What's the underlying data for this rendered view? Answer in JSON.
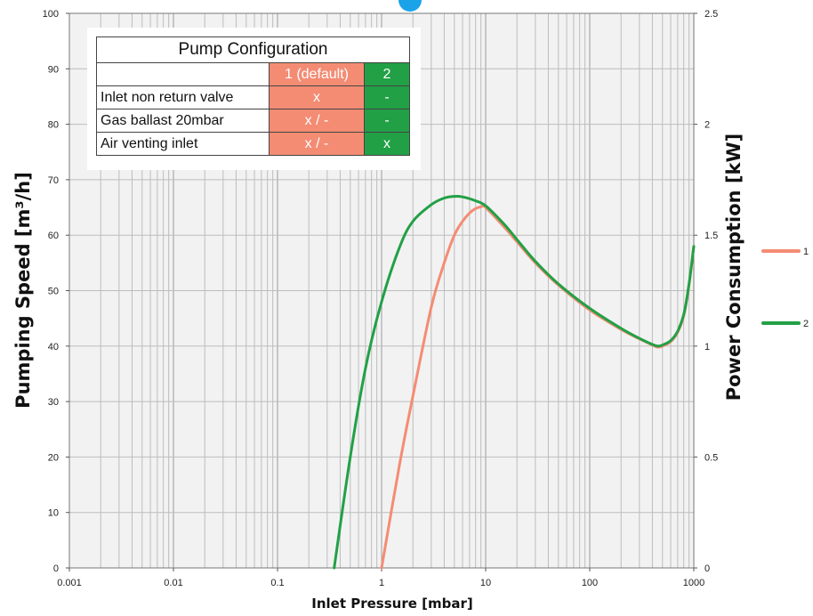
{
  "chart_data": {
    "type": "line",
    "title": "",
    "xlabel": "Inlet Pressure [mbar]",
    "ylabel": "Pumping Speed [m³/h]",
    "y2label": "Power Consumption [kW]",
    "x_scale": "log",
    "xlim": [
      0.001,
      1000
    ],
    "ylim": [
      0,
      100
    ],
    "y2lim": [
      0,
      2.5
    ],
    "x_ticks": [
      "0.001",
      "0.01",
      "0.1",
      "1",
      "10",
      "100",
      "1000"
    ],
    "y_ticks": [
      "0",
      "10",
      "20",
      "30",
      "40",
      "50",
      "60",
      "70",
      "80",
      "90",
      "100"
    ],
    "y2_ticks": [
      "0",
      "0.5",
      "1",
      "1.5",
      "2",
      "2.5"
    ],
    "grid": true,
    "legend_position": "right",
    "series": [
      {
        "name": "1",
        "color": "#f48c74",
        "x": [
          1,
          1.5,
          2,
          3,
          4,
          5,
          6,
          7,
          8,
          9,
          10,
          15,
          20,
          30,
          50,
          100,
          200,
          300,
          400,
          450,
          500,
          600,
          700,
          800,
          900,
          1000
        ],
        "y": [
          0,
          19,
          31,
          47,
          55,
          60,
          62.5,
          64,
          64.8,
          65.1,
          65,
          61.5,
          58.8,
          55,
          51,
          46.5,
          43,
          41.3,
          40.2,
          39.8,
          40,
          40.8,
          42.5,
          45.5,
          51,
          58
        ]
      },
      {
        "name": "2",
        "color": "#22a046",
        "x": [
          0.35,
          0.5,
          0.7,
          1,
          1.5,
          2,
          3,
          4,
          5,
          6,
          8,
          10,
          15,
          20,
          30,
          50,
          100,
          200,
          300,
          400,
          450,
          500,
          600,
          700,
          800,
          900,
          1000
        ],
        "y": [
          0,
          20,
          36,
          48,
          58,
          62.5,
          65.5,
          66.7,
          67,
          66.9,
          66.2,
          65.3,
          62,
          59.2,
          55.3,
          51.2,
          46.8,
          43.2,
          41.4,
          40.3,
          40,
          40.2,
          41,
          42.7,
          45.7,
          51.2,
          58
        ]
      }
    ]
  },
  "config_table": {
    "title": "Pump Configuration",
    "columns": [
      "1 (default)",
      "2"
    ],
    "rows": [
      {
        "label": "Inlet non return valve",
        "c1": "x",
        "c2": "-"
      },
      {
        "label": "Gas ballast 20mbar",
        "c1": "x / -",
        "c2": "-"
      },
      {
        "label": "Air venting inlet",
        "c1": "x / -",
        "c2": "x"
      }
    ]
  },
  "colors": {
    "plot_background": "#f2f2f2",
    "grid": "#b5b5b5",
    "logo": "#1aa3e8"
  }
}
